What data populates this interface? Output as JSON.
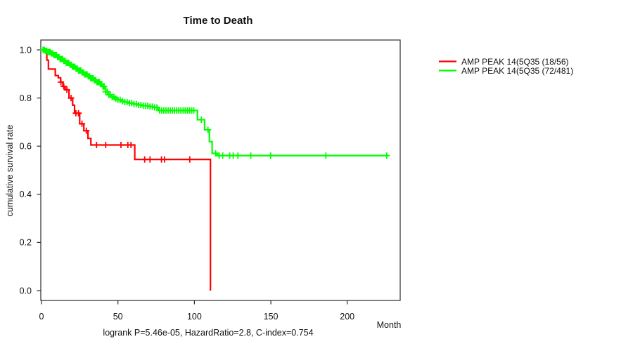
{
  "chart_data": {
    "type": "line",
    "subtype": "kaplan-meier-survival-step",
    "title": "Time to Death",
    "xlabel": "Month",
    "ylabel": "cumulative survival rate",
    "caption": "logrank P=5.46e-05, HazardRatio=2.8, C-index=0.754",
    "xlim": [
      0,
      235
    ],
    "ylim": [
      0.0,
      1.0
    ],
    "x_ticks": [
      0,
      50,
      100,
      150,
      200
    ],
    "y_ticks": [
      1.0,
      0.8,
      0.6,
      0.4,
      0.2,
      0.0
    ],
    "grid": false,
    "legend_position": "right-outside",
    "series": [
      {
        "name": "AMP PEAK 14(5Q35 (18/56)",
        "events_over_total": "18/56",
        "color": "#ff0000",
        "steps": [
          [
            0,
            1.0
          ],
          [
            3.5,
            0.957
          ],
          [
            4.5,
            0.92
          ],
          [
            9,
            0.893
          ],
          [
            11,
            0.884
          ],
          [
            12.5,
            0.866
          ],
          [
            14,
            0.848
          ],
          [
            15.5,
            0.834
          ],
          [
            18,
            0.8
          ],
          [
            20.4,
            0.77
          ],
          [
            21.6,
            0.737
          ],
          [
            25,
            0.693
          ],
          [
            27.7,
            0.664
          ],
          [
            30.4,
            0.632
          ],
          [
            32.3,
            0.605
          ],
          [
            61,
            0.545
          ],
          [
            110.5,
            0.0
          ]
        ],
        "censor_times": [
          12.7,
          14.6,
          16.6,
          19.3,
          22.5,
          24.2,
          26.5,
          29.3,
          36,
          42,
          52,
          56.5,
          58.5,
          67.5,
          71,
          78.5,
          80.5,
          97
        ]
      },
      {
        "name": "AMP PEAK 14(5Q35 (72/481)",
        "events_over_total": "72/481",
        "color": "#00ff00",
        "steps": [
          [
            0,
            1.0
          ],
          [
            2,
            0.996
          ],
          [
            4,
            0.991
          ],
          [
            6,
            0.985
          ],
          [
            8,
            0.978
          ],
          [
            10,
            0.97
          ],
          [
            12,
            0.962
          ],
          [
            14,
            0.954
          ],
          [
            16,
            0.946
          ],
          [
            18,
            0.938
          ],
          [
            20,
            0.93
          ],
          [
            22,
            0.922
          ],
          [
            24,
            0.914
          ],
          [
            26,
            0.906
          ],
          [
            28,
            0.898
          ],
          [
            30,
            0.89
          ],
          [
            32,
            0.882
          ],
          [
            34,
            0.874
          ],
          [
            36,
            0.866
          ],
          [
            38,
            0.858
          ],
          [
            40,
            0.848
          ],
          [
            42,
            0.826
          ],
          [
            44,
            0.813
          ],
          [
            46,
            0.804
          ],
          [
            48,
            0.797
          ],
          [
            50,
            0.792
          ],
          [
            52,
            0.787
          ],
          [
            54,
            0.783
          ],
          [
            57,
            0.779
          ],
          [
            60,
            0.775
          ],
          [
            63,
            0.771
          ],
          [
            66,
            0.768
          ],
          [
            70,
            0.764
          ],
          [
            73,
            0.761
          ],
          [
            76.5,
            0.748
          ],
          [
            102,
            0.71
          ],
          [
            106.7,
            0.668
          ],
          [
            109.8,
            0.619
          ],
          [
            111.6,
            0.57
          ],
          [
            115,
            0.561
          ],
          [
            225.8,
            0.561
          ]
        ],
        "censor_times": [
          1,
          1.8,
          2.6,
          3.4,
          4.2,
          5,
          5.8,
          6.6,
          7.4,
          8.2,
          9,
          9.8,
          10.6,
          11.4,
          12.2,
          13,
          13.8,
          14.6,
          15.4,
          16.2,
          17,
          17.8,
          18.6,
          19.4,
          20.2,
          21,
          21.8,
          22.6,
          23.4,
          24.2,
          25,
          25.8,
          26.6,
          27.4,
          28.2,
          29,
          29.8,
          30.6,
          31.4,
          32.2,
          33,
          33.8,
          34.6,
          35.4,
          36.2,
          37,
          37.8,
          38.6,
          39.4,
          40.2,
          41,
          42,
          43,
          44,
          45,
          46.2,
          47.4,
          48.6,
          50,
          51.5,
          53,
          54.5,
          56,
          57.5,
          59,
          60.5,
          62,
          63.5,
          65,
          66.5,
          68,
          69.5,
          71,
          72.5,
          74,
          75.5,
          77.2,
          78.6,
          80,
          81.4,
          82.8,
          84.2,
          85.6,
          87,
          88.4,
          89.8,
          91.2,
          92.6,
          94,
          95.4,
          96.8,
          98.2,
          99.6,
          104.5,
          108.9,
          113.9,
          116.2,
          118.5,
          123.1,
          125.4,
          128.5,
          136.9,
          149.9,
          186,
          225.8
        ]
      }
    ]
  }
}
